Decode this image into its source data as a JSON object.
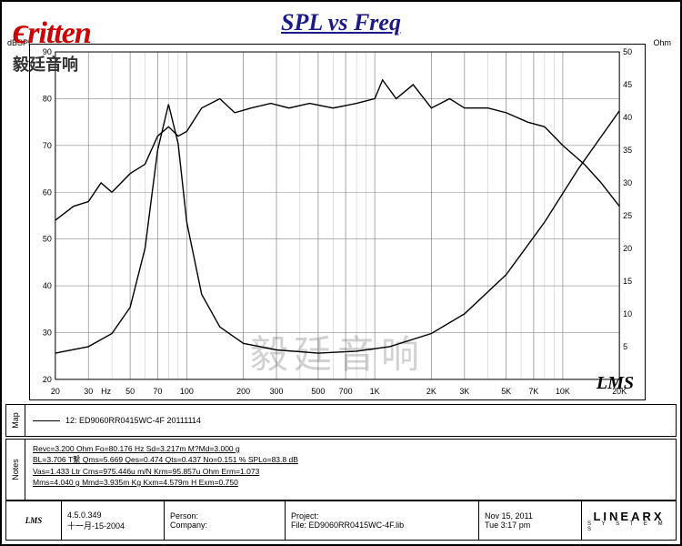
{
  "brand": {
    "name": "ritten",
    "sub": "毅廷音响"
  },
  "title": "SPL vs Freq",
  "chart": {
    "type": "line",
    "background_color": "#ffffff",
    "grid_color": "#bfbfbf",
    "grid_major_color": "#8a8a8a",
    "border_color": "#000000",
    "x_axis": {
      "scale": "log",
      "min": 20,
      "max": 20000,
      "unit": "Hz",
      "label": "Hz",
      "ticks": [
        20,
        30,
        50,
        70,
        100,
        200,
        300,
        500,
        700,
        1000,
        2000,
        3000,
        5000,
        7000,
        10000,
        20000
      ],
      "tick_labels": [
        "20",
        "30",
        "50",
        "70",
        "100",
        "200",
        "300",
        "500",
        "700",
        "1K",
        "2K",
        "3K",
        "5K",
        "7K",
        "10K",
        "20K"
      ]
    },
    "y_left": {
      "min": 20,
      "max": 90,
      "step": 10,
      "unit": "dBSPL",
      "color": "#000"
    },
    "y_right": {
      "min": 0,
      "max": 50,
      "step": 5,
      "unit": "Ohm",
      "color": "#000"
    },
    "series": [
      {
        "name": "SPL",
        "axis": "left",
        "color": "#000000",
        "width": 1.4,
        "points": [
          [
            20,
            54
          ],
          [
            25,
            57
          ],
          [
            30,
            58
          ],
          [
            35,
            62
          ],
          [
            40,
            60
          ],
          [
            50,
            64
          ],
          [
            60,
            66
          ],
          [
            70,
            72
          ],
          [
            80,
            74
          ],
          [
            90,
            72
          ],
          [
            100,
            73
          ],
          [
            120,
            78
          ],
          [
            150,
            80
          ],
          [
            180,
            77
          ],
          [
            220,
            78
          ],
          [
            280,
            79
          ],
          [
            350,
            78
          ],
          [
            450,
            79
          ],
          [
            600,
            78
          ],
          [
            800,
            79
          ],
          [
            1000,
            80
          ],
          [
            1100,
            84
          ],
          [
            1300,
            80
          ],
          [
            1600,
            83
          ],
          [
            2000,
            78
          ],
          [
            2500,
            80
          ],
          [
            3000,
            78
          ],
          [
            4000,
            78
          ],
          [
            5000,
            77
          ],
          [
            6500,
            75
          ],
          [
            8000,
            74
          ],
          [
            10000,
            70
          ],
          [
            13000,
            66
          ],
          [
            16000,
            62
          ],
          [
            20000,
            57
          ]
        ]
      },
      {
        "name": "Impedance",
        "axis": "right",
        "color": "#000000",
        "width": 1.4,
        "points": [
          [
            20,
            4
          ],
          [
            30,
            5
          ],
          [
            40,
            7
          ],
          [
            50,
            11
          ],
          [
            60,
            20
          ],
          [
            70,
            35
          ],
          [
            80,
            42
          ],
          [
            90,
            36
          ],
          [
            100,
            24
          ],
          [
            120,
            13
          ],
          [
            150,
            8
          ],
          [
            200,
            5.5
          ],
          [
            300,
            4.5
          ],
          [
            500,
            4
          ],
          [
            800,
            4.3
          ],
          [
            1200,
            5
          ],
          [
            2000,
            7
          ],
          [
            3000,
            10
          ],
          [
            5000,
            16
          ],
          [
            8000,
            24
          ],
          [
            12000,
            32
          ],
          [
            20000,
            41
          ]
        ]
      }
    ],
    "watermark": "毅廷音响",
    "signature": "LMS"
  },
  "legend": {
    "label": "12: ED9060RR0415WC-4F 20111114"
  },
  "notes": [
    "Revc=3.200 Ohm  Fo=80.176 Hz  Sd=3.217m M?Md=3.000 g",
    "BL=3.706 T繫  Qms=5.669  Qes=0.474  Qts=0.437  No=0.151 %  SPLo=83.8 dB",
    "Vas=1.433 Ltr  Cms=975.446u m/N  Krm=95.857u Ohm  Erm=1.073",
    "Mms=4.040 g  Mmd=3.935m Kg  Kxm=4.579m H  Exm=0.750"
  ],
  "footer": {
    "app": "LMS",
    "version": "4.5.0.349",
    "date_cn": "十一月-15-2004",
    "person_label": "Person:",
    "company_label": "Company:",
    "project_label": "Project:",
    "file_label": "File:",
    "file": "ED9060RR0415WC-4F.lib",
    "date": "Nov 15, 2011",
    "time": "Tue  3:17 pm",
    "system": "LINEARX",
    "system_sub": "S Y S T E M S"
  }
}
